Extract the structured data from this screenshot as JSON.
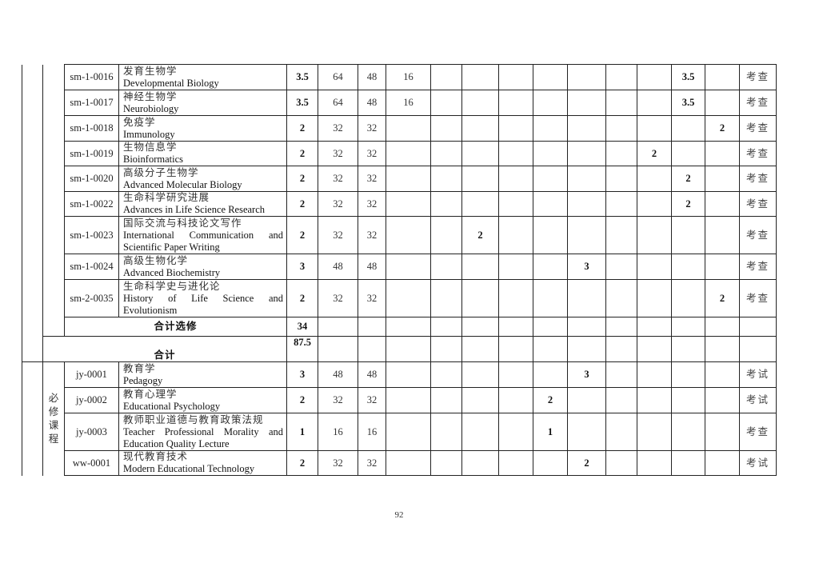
{
  "group1": {
    "courses": [
      {
        "code": "sm-1-0016",
        "cn": "发育生物学",
        "en": "Developmental Biology",
        "credits": "3.5",
        "hours": "64",
        "lecture": "48",
        "lab": "16",
        "semesters": [
          "",
          "",
          "",
          "",
          "",
          "",
          "",
          "3.5",
          ""
        ],
        "exam": "考查"
      },
      {
        "code": "sm-1-0017",
        "cn": "神经生物学",
        "en": "Neurobiology",
        "credits": "3.5",
        "hours": "64",
        "lecture": "48",
        "lab": "16",
        "semesters": [
          "",
          "",
          "",
          "",
          "",
          "",
          "",
          "3.5",
          ""
        ],
        "exam": "考查"
      },
      {
        "code": "sm-1-0018",
        "cn": "免疫学",
        "en": "Immunology",
        "credits": "2",
        "hours": "32",
        "lecture": "32",
        "lab": "",
        "semesters": [
          "",
          "",
          "",
          "",
          "",
          "",
          "",
          "",
          "2"
        ],
        "exam": "考查"
      },
      {
        "code": "sm-1-0019",
        "cn": "生物信息学",
        "en": "Bioinformatics",
        "credits": "2",
        "hours": "32",
        "lecture": "32",
        "lab": "",
        "semesters": [
          "",
          "",
          "",
          "",
          "",
          "",
          "2",
          "",
          ""
        ],
        "exam": "考查"
      },
      {
        "code": "sm-1-0020",
        "cn": "高级分子生物学",
        "en": "Advanced Molecular Biology",
        "credits": "2",
        "hours": "32",
        "lecture": "32",
        "lab": "",
        "semesters": [
          "",
          "",
          "",
          "",
          "",
          "",
          "",
          "2",
          ""
        ],
        "exam": "考查"
      },
      {
        "code": "sm-1-0022",
        "cn": "生命科学研究进展",
        "en": "Advances in Life Science Research",
        "credits": "2",
        "hours": "32",
        "lecture": "32",
        "lab": "",
        "semesters": [
          "",
          "",
          "",
          "",
          "",
          "",
          "",
          "2",
          ""
        ],
        "exam": "考查"
      },
      {
        "code": "sm-1-0023",
        "cn": "国际交流与科技论文写作",
        "en": "International Communication and Scientific Paper Writing",
        "credits": "2",
        "hours": "32",
        "lecture": "32",
        "lab": "",
        "semesters": [
          "",
          "2",
          "",
          "",
          "",
          "",
          "",
          "",
          ""
        ],
        "exam": "考查"
      },
      {
        "code": "sm-1-0024",
        "cn": "高级生物化学",
        "en": "Advanced Biochemistry",
        "credits": "3",
        "hours": "48",
        "lecture": "48",
        "lab": "",
        "semesters": [
          "",
          "",
          "",
          "",
          "3",
          "",
          "",
          "",
          ""
        ],
        "exam": "考查"
      },
      {
        "code": "sm-2-0035",
        "cn": "生命科学史与进化论",
        "en": "History of Life Science and Evolutionism",
        "credits": "2",
        "hours": "32",
        "lecture": "32",
        "lab": "",
        "semesters": [
          "",
          "",
          "",
          "",
          "",
          "",
          "",
          "",
          "2"
        ],
        "exam": "考查"
      }
    ],
    "elective_total_label": "合计选修",
    "elective_total_credits": "34",
    "total_label": "合计",
    "total_credits": "87.5"
  },
  "group2": {
    "category": "必修课程",
    "courses": [
      {
        "code": "jy-0001",
        "cn": "教育学",
        "en": "Pedagogy",
        "credits": "3",
        "hours": "48",
        "lecture": "48",
        "lab": "",
        "semesters": [
          "",
          "",
          "",
          "",
          "3",
          "",
          "",
          "",
          ""
        ],
        "exam": "考试"
      },
      {
        "code": "jy-0002",
        "cn": "教育心理学",
        "en": "Educational Psychology",
        "credits": "2",
        "hours": "32",
        "lecture": "32",
        "lab": "",
        "semesters": [
          "",
          "",
          "",
          "2",
          "",
          "",
          "",
          "",
          ""
        ],
        "exam": "考试"
      },
      {
        "code": "jy-0003",
        "cn": "教师职业道德与教育政策法规",
        "en": "Teacher Professional Morality and Education Quality Lecture",
        "credits": "1",
        "hours": "16",
        "lecture": "16",
        "lab": "",
        "semesters": [
          "",
          "",
          "",
          "1",
          "",
          "",
          "",
          "",
          ""
        ],
        "exam": "考查"
      },
      {
        "code": "ww-0001",
        "cn": "现代教育技术",
        "en": "Modern Educational Technology",
        "credits": "2",
        "hours": "32",
        "lecture": "32",
        "lab": "",
        "semesters": [
          "",
          "",
          "",
          "",
          "2",
          "",
          "",
          "",
          ""
        ],
        "exam": "考试"
      }
    ]
  },
  "page_number": "92"
}
